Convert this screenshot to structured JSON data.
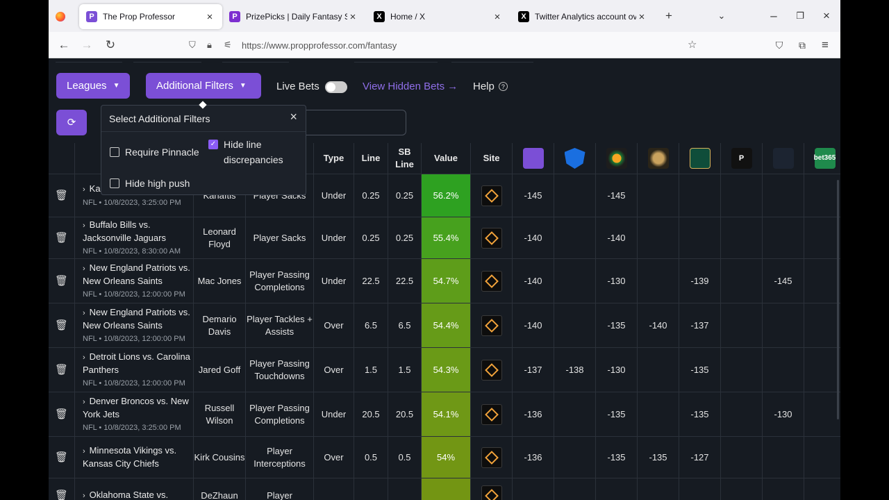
{
  "browser": {
    "tabs": [
      {
        "title": "The Prop Professor",
        "icon": "prop-professor-icon",
        "active": true
      },
      {
        "title": "PrizePicks | Daily Fantasy Sports",
        "icon": "prizepicks-icon",
        "active": false
      },
      {
        "title": "Home / X",
        "icon": "x-icon",
        "active": false
      },
      {
        "title": "Twitter Analytics account overvi",
        "icon": "x-icon",
        "active": false
      }
    ],
    "url": "https://www.propprofessor.com/fantasy"
  },
  "toolbar": {
    "leagues": "Leagues",
    "additional_filters": "Additional Filters",
    "live_bets": "Live Bets",
    "view_hidden": "View Hidden Bets →",
    "help": "Help"
  },
  "popover": {
    "title": "Select Additional Filters",
    "options": [
      {
        "label": "Require Pinnacle",
        "checked": false
      },
      {
        "label": "Hide line discrepancies",
        "checked": true
      },
      {
        "label": "Hide high push",
        "checked": false
      }
    ]
  },
  "table": {
    "headers": [
      "Type",
      "Line",
      "SB Line",
      "Value",
      "Site"
    ],
    "books": [
      {
        "icon": "prop-professor-book-icon",
        "color": "#7b4fd6",
        "text": ""
      },
      {
        "icon": "fanduel-icon",
        "color": "#1a6fe0",
        "text": ""
      },
      {
        "icon": "draftkings-icon",
        "color": "#1d1d1d",
        "text": ""
      },
      {
        "icon": "betmgm-icon",
        "color": "#2a2418",
        "text": ""
      },
      {
        "icon": "caesars-icon",
        "color": "#0f4d3a",
        "text": ""
      },
      {
        "icon": "pointsbet-icon",
        "color": "#111",
        "text": "P"
      },
      {
        "icon": "wynnbet-icon",
        "color": "#1c2431",
        "text": ""
      },
      {
        "icon": "bet365-icon",
        "color": "#1f8a4c",
        "text": "bet365"
      }
    ],
    "rows": [
      {
        "game": "Kansas City Chiefs",
        "date": "NFL • 10/8/2023, 3:25:00 PM",
        "player": "Karlaftis",
        "prop": "Player Sacks",
        "type": "Under",
        "line": "0.25",
        "sb_line": "0.25",
        "value": "56.2%",
        "value_color": "#2ea121",
        "odds": [
          "-145",
          "",
          "-145",
          "",
          "",
          "",
          "",
          ""
        ]
      },
      {
        "game": "Buffalo Bills vs. Jacksonville Jaguars",
        "date": "NFL • 10/8/2023, 8:30:00 AM",
        "player": "Leonard Floyd",
        "prop": "Player Sacks",
        "type": "Under",
        "line": "0.25",
        "sb_line": "0.25",
        "value": "55.4%",
        "value_color": "#47a11e",
        "odds": [
          "-140",
          "",
          "-140",
          "",
          "",
          "",
          "",
          ""
        ]
      },
      {
        "game": "New England Patriots vs. New Orleans Saints",
        "date": "NFL • 10/8/2023, 12:00:00 PM",
        "player": "Mac Jones",
        "prop": "Player Passing Completions",
        "type": "Under",
        "line": "22.5",
        "sb_line": "22.5",
        "value": "54.7%",
        "value_color": "#5e9d1a",
        "odds": [
          "-140",
          "",
          "-130",
          "",
          "-139",
          "",
          "-145",
          ""
        ]
      },
      {
        "game": "New England Patriots vs. New Orleans Saints",
        "date": "NFL • 10/8/2023, 12:00:00 PM",
        "player": "Demario Davis",
        "prop": "Player Tackles + Assists",
        "type": "Over",
        "line": "6.5",
        "sb_line": "6.5",
        "value": "54.4%",
        "value_color": "#669b18",
        "odds": [
          "-140",
          "",
          "-135",
          "-140",
          "-137",
          "",
          "",
          ""
        ]
      },
      {
        "game": "Detroit Lions vs. Carolina Panthers",
        "date": "NFL • 10/8/2023, 12:00:00 PM",
        "player": "Jared Goff",
        "prop": "Player Passing Touchdowns",
        "type": "Over",
        "line": "1.5",
        "sb_line": "1.5",
        "value": "54.3%",
        "value_color": "#6a9a17",
        "odds": [
          "-137",
          "-138",
          "-130",
          "",
          "-135",
          "",
          "",
          ""
        ]
      },
      {
        "game": "Denver Broncos vs. New York Jets",
        "date": "NFL • 10/8/2023, 3:25:00 PM",
        "player": "Russell Wilson",
        "prop": "Player Passing Completions",
        "type": "Under",
        "line": "20.5",
        "sb_line": "20.5",
        "value": "54.1%",
        "value_color": "#6f9816",
        "odds": [
          "-136",
          "",
          "-135",
          "",
          "-135",
          "",
          "-130",
          ""
        ]
      },
      {
        "game": "Minnesota Vikings vs. Kansas City Chiefs",
        "date": "",
        "player": "Kirk Cousins",
        "prop": "Player Interceptions",
        "type": "Over",
        "line": "0.5",
        "sb_line": "0.5",
        "value": "54%",
        "value_color": "#729614",
        "odds": [
          "-136",
          "",
          "-135",
          "-135",
          "-127",
          "",
          "",
          ""
        ]
      },
      {
        "game": "Oklahoma State vs.",
        "date": "",
        "player": "DeZhaun",
        "prop": "Player",
        "type": "",
        "line": "",
        "sb_line": "",
        "value": "",
        "value_color": "#739513",
        "odds": [
          "",
          "",
          "",
          "",
          "",
          "",
          "",
          ""
        ]
      }
    ]
  }
}
